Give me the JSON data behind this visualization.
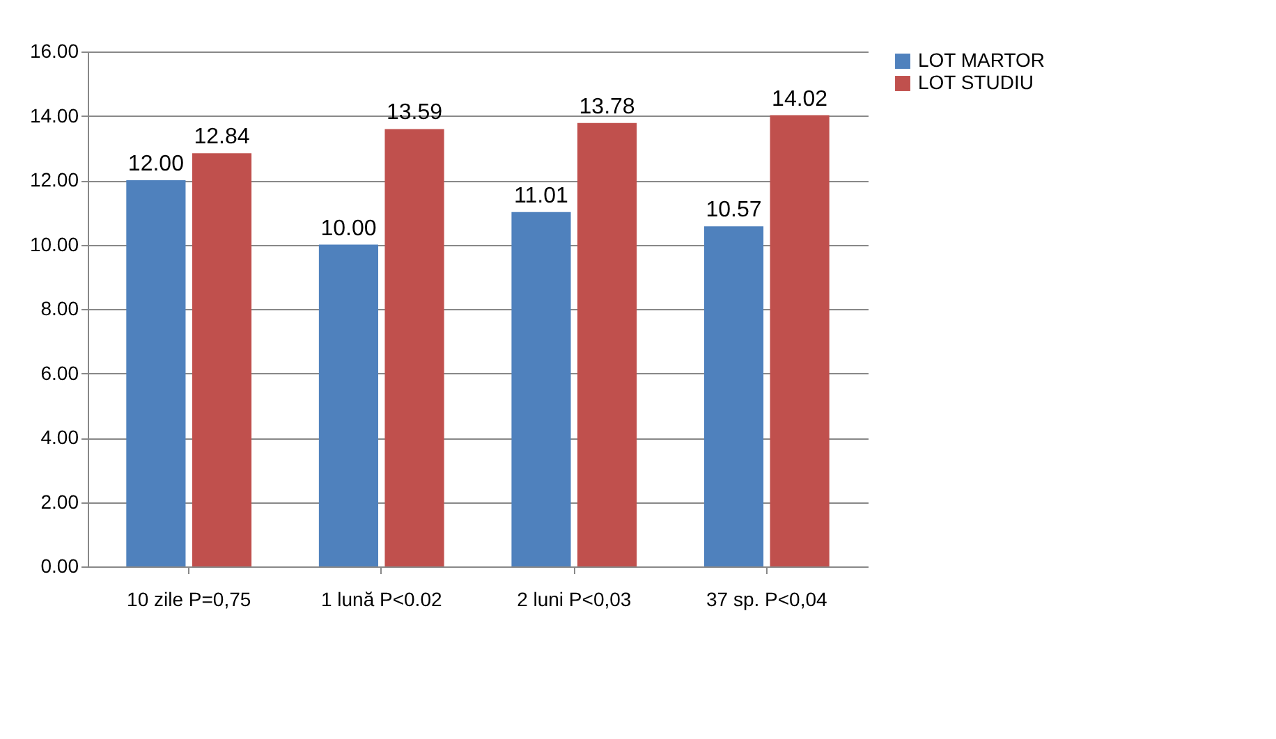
{
  "chart_data": {
    "type": "bar",
    "categories": [
      "10 zile\nP=0,75",
      "1 lună\nP<0.02",
      "2 luni\nP<0,03",
      "37 sp.\nP<0,04"
    ],
    "series": [
      {
        "name": "LOT MARTOR",
        "color": "#4f81bd",
        "values": [
          12.0,
          10.0,
          11.01,
          10.57
        ],
        "value_labels": [
          "12.00",
          "10.00",
          "11.01",
          "10.57"
        ]
      },
      {
        "name": "LOT STUDIU",
        "color": "#c0504d",
        "values": [
          12.84,
          13.59,
          13.78,
          14.02
        ],
        "value_labels": [
          "12.84",
          "13.59",
          "13.78",
          "14.02"
        ]
      }
    ],
    "ylim": [
      0,
      16
    ],
    "yticks": [
      {
        "value": 0,
        "label": "0.00"
      },
      {
        "value": 2,
        "label": "2.00"
      },
      {
        "value": 4,
        "label": "4.00"
      },
      {
        "value": 6,
        "label": "6.00"
      },
      {
        "value": 8,
        "label": "8.00"
      },
      {
        "value": 10,
        "label": "10.00"
      },
      {
        "value": 12,
        "label": "12.00"
      },
      {
        "value": 14,
        "label": "14.00"
      },
      {
        "value": 16,
        "label": "16.00"
      }
    ],
    "grid": "y",
    "legend": "right"
  }
}
